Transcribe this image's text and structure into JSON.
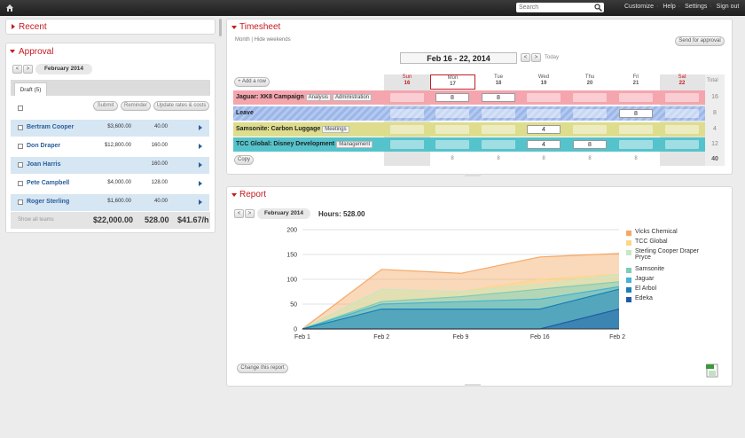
{
  "topbar": {
    "search_placeholder": "Search",
    "links": [
      "Customize",
      "Help",
      "Settings",
      "Sign out"
    ]
  },
  "recent": {
    "title": "Recent"
  },
  "approval": {
    "title": "Approval",
    "period": "February 2014",
    "tab": "Draft (5)",
    "buttons": {
      "submit": "Submit",
      "reminder": "Reminder",
      "update": "Update rates & costs"
    },
    "people": [
      {
        "name": "Bertram Cooper",
        "amount": "$3,600.00",
        "hours": "40.00"
      },
      {
        "name": "Don Draper",
        "amount": "$12,800.00",
        "hours": "160.00"
      },
      {
        "name": "Joan Harris",
        "amount": "",
        "hours": "160.00"
      },
      {
        "name": "Pete Campbell",
        "amount": "$4,000.00",
        "hours": "128.00"
      },
      {
        "name": "Roger Sterling",
        "amount": "$1,600.00",
        "hours": "40.00"
      }
    ],
    "footer": {
      "show_all": "Show all teams",
      "total_amount": "$22,000.00",
      "total_hours": "528.00",
      "rate": "$41.67/h"
    }
  },
  "timesheet": {
    "title": "Timesheet",
    "view_links": "Month | Hide weekends",
    "send_button": "Send for approval",
    "date_range": "Feb 16 - 22, 2014",
    "today": "Today",
    "add_row": "+ Add a row",
    "copy": "Copy",
    "total_label": "Total",
    "days": [
      {
        "name": "Sun",
        "num": "16",
        "weekend": true
      },
      {
        "name": "Mon",
        "num": "17",
        "weekend": false
      },
      {
        "name": "Tue",
        "num": "18",
        "weekend": false
      },
      {
        "name": "Wed",
        "num": "19",
        "weekend": false
      },
      {
        "name": "Thu",
        "num": "20",
        "weekend": false
      },
      {
        "name": "Fri",
        "num": "21",
        "weekend": false
      },
      {
        "name": "Sat",
        "num": "22",
        "weekend": true
      }
    ],
    "rows": [
      {
        "project": "Jaguar: XK8 Campaign",
        "tags": [
          "Analysis",
          "Administration"
        ],
        "color": "#f4a5ae",
        "values": [
          "",
          "8",
          "8",
          "",
          "",
          "",
          ""
        ],
        "total": "16"
      },
      {
        "project": "Leave",
        "tags": [],
        "color": "#9bb6e8",
        "values": [
          "",
          "",
          "",
          "",
          "",
          "8",
          ""
        ],
        "total": "8"
      },
      {
        "project": "Samsonite: Carbon Luggage",
        "tags": [
          "Meetings"
        ],
        "color": "#dedd8e",
        "values": [
          "",
          "",
          "",
          "4",
          "",
          "",
          ""
        ],
        "total": "4"
      },
      {
        "project": "TCC Global: Disney Development",
        "tags": [
          "Management"
        ],
        "color": "#55c3cc",
        "values": [
          "",
          "",
          "",
          "4",
          "8",
          "",
          ""
        ],
        "total": "12"
      }
    ],
    "day_totals": [
      "",
      "8",
      "8",
      "8",
      "8",
      "8",
      ""
    ],
    "grand_total": "40"
  },
  "report": {
    "title": "Report",
    "period": "February 2014",
    "hours": "Hours: 528.00",
    "change_button": "Change this report"
  },
  "chart_data": {
    "type": "area",
    "x": [
      "Feb 1",
      "Feb 2",
      "Feb 9",
      "Feb 16",
      "Feb 23"
    ],
    "ylim": [
      0,
      200
    ],
    "yticks": [
      0,
      50,
      100,
      150,
      200
    ],
    "series": [
      {
        "name": "Edeka",
        "color": "#1f5aa6",
        "values": [
          0,
          0,
          0,
          0,
          40
        ]
      },
      {
        "name": "El Arbol",
        "color": "#1a7fb5",
        "values": [
          0,
          40,
          40,
          40,
          80
        ]
      },
      {
        "name": "Jaguar",
        "color": "#46b3d1",
        "values": [
          0,
          50,
          55,
          60,
          85
        ]
      },
      {
        "name": "Samsonite",
        "color": "#7dcdb8",
        "values": [
          0,
          55,
          65,
          80,
          95
        ]
      },
      {
        "name": "Sterling Cooper Draper Pryce",
        "color": "#c6e8c4",
        "values": [
          0,
          80,
          75,
          90,
          110
        ]
      },
      {
        "name": "TCC Global",
        "color": "#fbd78a",
        "values": [
          0,
          80,
          75,
          100,
          110
        ]
      },
      {
        "name": "Vicks Chemical",
        "color": "#f5a866",
        "values": [
          0,
          120,
          112,
          145,
          152
        ]
      }
    ],
    "legend_position": "right"
  }
}
